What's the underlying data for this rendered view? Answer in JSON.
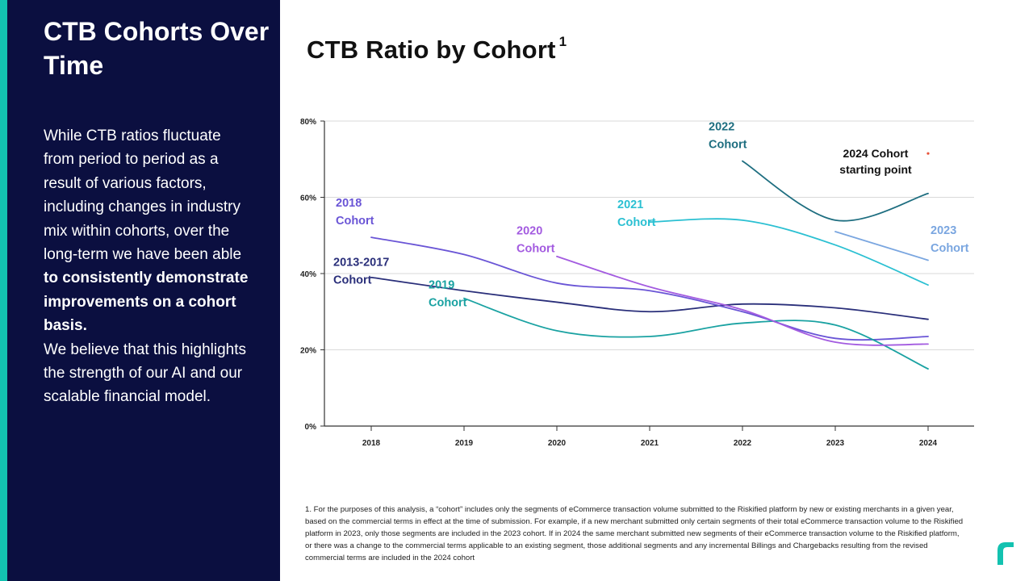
{
  "sidebar": {
    "title": "CTB Cohorts Over Time",
    "body_intro": "While CTB ratios fluctuate from period to period as a result of various factors, including changes in industry mix within cohorts, over the long-term we have been able",
    "body_bold": "to consistently demonstrate improvements on a cohort basis.",
    "body_outro": "We believe that this highlights the strength of our AI and our scalable financial model."
  },
  "chart": {
    "title": "CTB Ratio by Cohort",
    "footnote_marker": "1",
    "annotation": "2024 Cohort starting point"
  },
  "footnote": "1. For the purposes of this analysis, a “cohort” includes only the segments of eCommerce transaction volume submitted to the Riskified platform by new or existing merchants in a given year, based on the commercial terms in effect at the time of submission. For example, if a new merchant submitted only certain segments of their total eCommerce transaction volume to the Riskified platform in 2023, only those segments are included in the 2023 cohort. If in 2024 the same merchant submitted new segments of their eCommerce transaction volume to the Riskified platform, or there was a change to the commercial terms applicable to an existing segment, those additional segments and any incremental Billings and Chargebacks resulting from the revised commercial terms are included in the 2024 cohort",
  "colors": {
    "sidebar_bg": "#0b0f40",
    "accent": "#13c2b0",
    "grid": "#d9d9d9",
    "axis": "#333333",
    "annotation_dot": "#e8533a"
  },
  "chart_data": {
    "type": "line",
    "title": "CTB Ratio by Cohort",
    "xlabel": "",
    "ylabel": "",
    "x": [
      2018,
      2019,
      2020,
      2021,
      2022,
      2023,
      2024
    ],
    "x_tick_labels": [
      "2018",
      "2019",
      "2020",
      "2021",
      "2022",
      "2023",
      "2024"
    ],
    "y_ticks": [
      0,
      20,
      40,
      60,
      80
    ],
    "y_tick_labels": [
      "0%",
      "20%",
      "40%",
      "60%",
      "80%"
    ],
    "ylim": [
      0,
      80
    ],
    "grid": true,
    "series": [
      {
        "name": "2013-2017 Cohort",
        "label_lines": [
          "2013-2017",
          "Cohort"
        ],
        "color": "#2a2f7a",
        "x": [
          2018,
          2019,
          2020,
          2021,
          2022,
          2023,
          2024
        ],
        "values": [
          39,
          35.5,
          32.5,
          30,
          32,
          31,
          28
        ]
      },
      {
        "name": "2018 Cohort",
        "label_lines": [
          "2018",
          "Cohort"
        ],
        "color": "#6a55d6",
        "x": [
          2018,
          2019,
          2020,
          2021,
          2022,
          2023,
          2024
        ],
        "values": [
          49.5,
          45,
          37.5,
          35.5,
          30,
          23,
          23.5
        ]
      },
      {
        "name": "2019 Cohort",
        "label_lines": [
          "2019",
          "Cohort"
        ],
        "color": "#1aa2a2",
        "x": [
          2019,
          2020,
          2021,
          2022,
          2023,
          2024
        ],
        "values": [
          33.5,
          25,
          23.5,
          27,
          26.5,
          15
        ]
      },
      {
        "name": "2020 Cohort",
        "label_lines": [
          "2020",
          "Cohort"
        ],
        "color": "#a35be0",
        "x": [
          2020,
          2021,
          2022,
          2023,
          2024
        ],
        "values": [
          44.5,
          36.5,
          30.5,
          22,
          21.5
        ]
      },
      {
        "name": "2021 Cohort",
        "label_lines": [
          "2021",
          "Cohort"
        ],
        "color": "#2bc0d2",
        "x": [
          2021,
          2022,
          2023,
          2024
        ],
        "values": [
          53.5,
          54,
          47.5,
          37
        ]
      },
      {
        "name": "2022 Cohort",
        "label_lines": [
          "2022",
          "Cohort"
        ],
        "color": "#1e6e80",
        "x": [
          2022,
          2023,
          2024
        ],
        "values": [
          69.5,
          54,
          61
        ]
      },
      {
        "name": "2023 Cohort",
        "label_lines": [
          "2023",
          "Cohort"
        ],
        "color": "#7aa6e0",
        "x": [
          2023,
          2024
        ],
        "values": [
          51,
          43.5
        ]
      }
    ]
  }
}
